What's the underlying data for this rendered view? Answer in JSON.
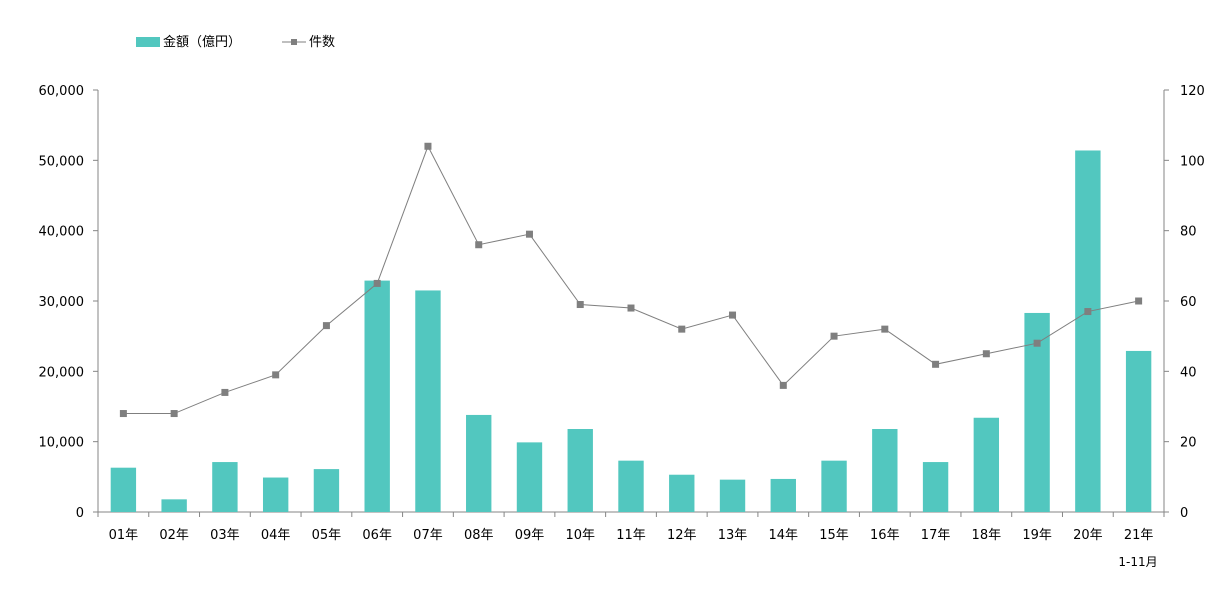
{
  "chart_data": {
    "type": "bar+line",
    "categories": [
      "01年",
      "02年",
      "03年",
      "04年",
      "05年",
      "06年",
      "07年",
      "08年",
      "09年",
      "10年",
      "11年",
      "12年",
      "13年",
      "14年",
      "15年",
      "16年",
      "17年",
      "18年",
      "19年",
      "20年",
      "21年"
    ],
    "series": [
      {
        "name": "金額（億円）",
        "type": "bar",
        "axis": "left",
        "color": "#52c7bf",
        "values": [
          6300,
          1800,
          7100,
          4900,
          6100,
          32900,
          31500,
          13800,
          9900,
          11800,
          7300,
          5300,
          4600,
          4700,
          7300,
          11800,
          7100,
          13400,
          28300,
          51400,
          22900
        ]
      },
      {
        "name": "件数",
        "type": "line",
        "axis": "right",
        "color": "#7f7f7f",
        "values": [
          28,
          28,
          34,
          39,
          53,
          65,
          104,
          76,
          79,
          59,
          58,
          52,
          56,
          36,
          50,
          52,
          42,
          45,
          48,
          57,
          60
        ]
      }
    ],
    "y_left": {
      "min": 0,
      "max": 60000,
      "ticks": [
        "0",
        "10,000",
        "20,000",
        "30,000",
        "40,000",
        "50,000",
        "60,000"
      ]
    },
    "y_right": {
      "min": 0,
      "max": 120,
      "ticks": [
        "0",
        "20",
        "40",
        "60",
        "80",
        "100",
        "120"
      ]
    },
    "note": "1-11月",
    "legend_position": "top-left",
    "grid": false
  }
}
